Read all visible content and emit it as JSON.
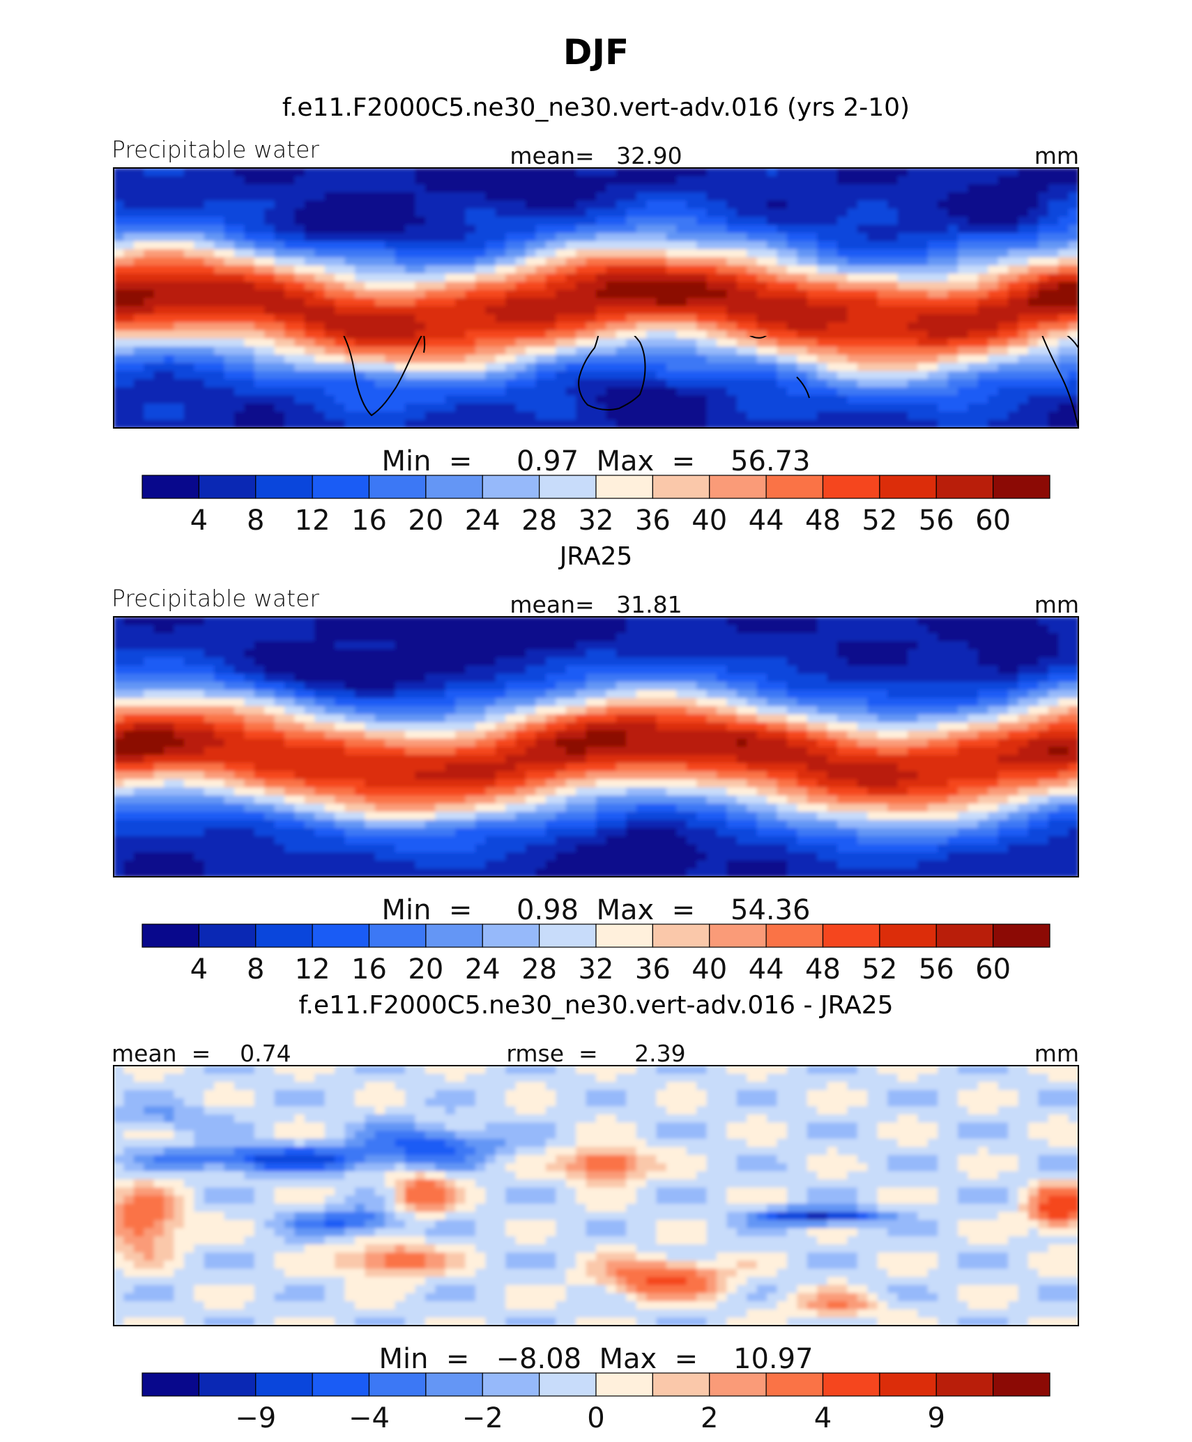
{
  "title": "DJF",
  "palette_seq": [
    "#08088c",
    "#0a28b4",
    "#0a46dc",
    "#1a5cf5",
    "#3c78f5",
    "#6496f5",
    "#96b9fa",
    "#c8dcfa",
    "#fff0dc",
    "#fac8aa",
    "#fa9b78",
    "#fa7346",
    "#f5461e",
    "#dc2d0a",
    "#b91e0a",
    "#8c0a05"
  ],
  "palette_diff": [
    "#08088c",
    "#0a28b4",
    "#0a46dc",
    "#1a5cf5",
    "#3c78f5",
    "#6496f5",
    "#96b9fa",
    "#c8dcfa",
    "#fff0dc",
    "#fac8aa",
    "#fa9b78",
    "#fa7346",
    "#f5461e",
    "#dc2d0a",
    "#b91e0a",
    "#8c0a05"
  ],
  "panels": [
    {
      "title": "f.e11.F2000C5.ne30_ne30.vert-adv.016 (yrs 2-10)",
      "left_label": "Precipitable  water",
      "center_label": "mean=   32.90",
      "right_label": "mm",
      "minmax": "Min  =     0.97  Max  =    56.73",
      "colorbar_labels": [
        "4",
        "8",
        "12",
        "16",
        "20",
        "24",
        "28",
        "32",
        "36",
        "40",
        "44",
        "48",
        "52",
        "56",
        "60"
      ],
      "field": "model"
    },
    {
      "title": "JRA25",
      "left_label": "Precipitable  water",
      "center_label": "mean=   31.81",
      "right_label": "mm",
      "minmax": "Min  =     0.98  Max  =    54.36",
      "colorbar_labels": [
        "4",
        "8",
        "12",
        "16",
        "20",
        "24",
        "28",
        "32",
        "36",
        "40",
        "44",
        "48",
        "52",
        "56",
        "60"
      ],
      "field": "obs"
    },
    {
      "title": "f.e11.F2000C5.ne30_ne30.vert-adv.016 - JRA25",
      "left_label": "mean  =    0.74",
      "center_label": "rmse  =     2.39",
      "right_label": "mm",
      "minmax": "Min  =   −8.08  Max  =    10.97",
      "colorbar_labels": [
        "−9",
        "−4",
        "−2",
        "0",
        "2",
        "4",
        "9"
      ],
      "field": "diff"
    }
  ]
}
